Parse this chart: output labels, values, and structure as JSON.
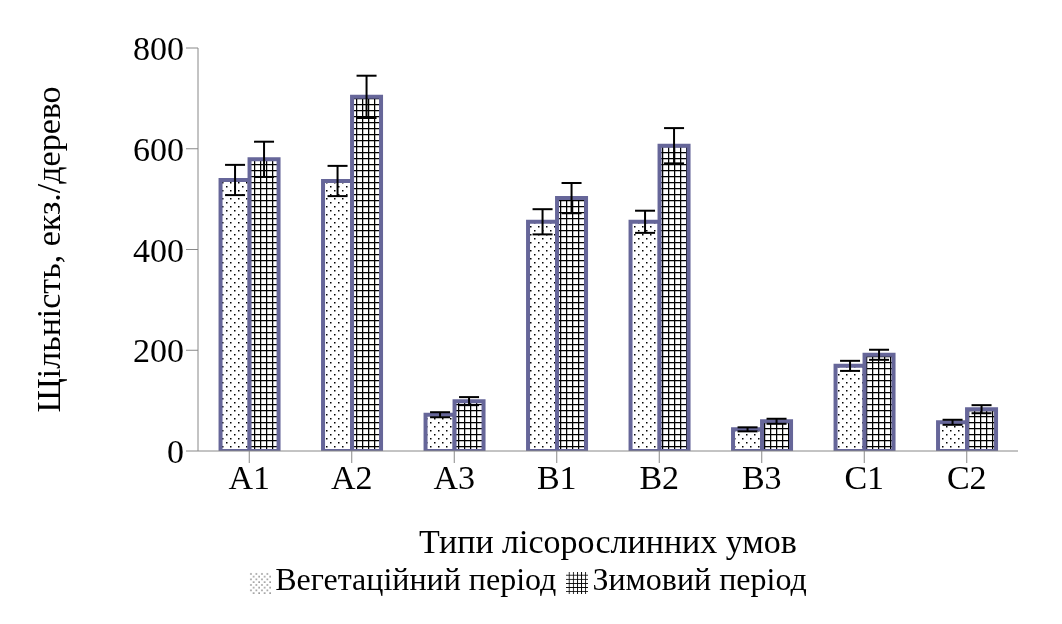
{
  "chart_data": {
    "type": "bar",
    "xlabel": "Типи лісорослинних умов",
    "ylabel": "Щільність, екз./дерево",
    "categories": [
      "A1",
      "A2",
      "A3",
      "B1",
      "B2",
      "B3",
      "C1",
      "C2"
    ],
    "series": [
      {
        "name": "Вегетаційний період",
        "color": "#666699",
        "values": [
          538,
          536,
          72,
          455,
          455,
          43,
          169,
          57
        ],
        "errors": [
          30,
          30,
          5,
          25,
          22,
          4,
          10,
          5
        ]
      },
      {
        "name": "Зимовий період",
        "color": "#666699",
        "values": [
          579,
          703,
          99,
          502,
          606,
          59,
          191,
          83
        ],
        "errors": [
          35,
          42,
          8,
          30,
          35,
          5,
          10,
          8
        ]
      }
    ],
    "ylim": [
      0,
      800
    ],
    "yticks": [
      0,
      200,
      400,
      600,
      800
    ],
    "grid": false,
    "legend": "bottom"
  }
}
